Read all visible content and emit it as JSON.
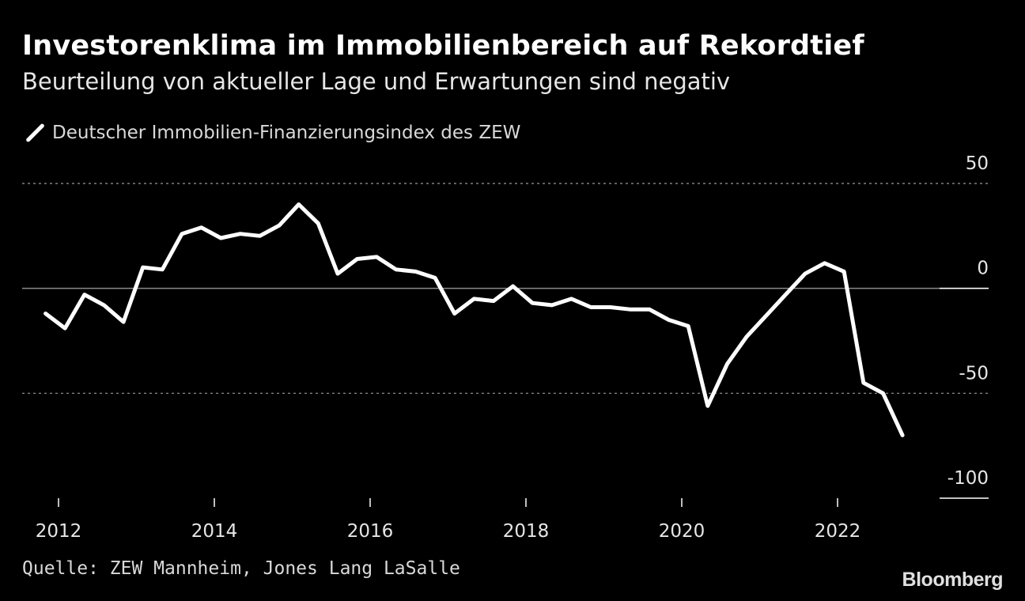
{
  "header": {
    "title": "Investorenklima im Immobilienbereich auf Rekordtief",
    "subtitle": "Beurteilung von aktueller Lage und Erwartungen sind negativ"
  },
  "footer": {
    "source": "Quelle: ZEW Mannheim, Jones Lang LaSalle",
    "brand": "Bloomberg"
  },
  "colors": {
    "background": "#000000",
    "line": "#ffffff",
    "grid": "#8a8a8a",
    "text": "#ffffff"
  },
  "chart_data": {
    "type": "line",
    "title": "Investorenklima im Immobilienbereich auf Rekordtief",
    "subtitle": "Beurteilung von aktueller Lage und Erwartungen sind negativ",
    "ylim": [
      -100,
      50
    ],
    "yticks": [
      50,
      0,
      -50,
      -100
    ],
    "xlim": [
      "2012-01-01",
      "2023-12-31"
    ],
    "xticks": [
      "2012",
      "2014",
      "2016",
      "2018",
      "2020",
      "2022"
    ],
    "zero_line": true,
    "grid": "dotted horizontal at 50 and -50",
    "legend": {
      "position": "top-left",
      "entries": [
        "Deutscher Immobilien-Finanzierungsindex des ZEW"
      ]
    },
    "series": [
      {
        "name": "Deutscher Immobilien-Finanzierungsindex des ZEW",
        "x": [
          "2011-11",
          "2012-02",
          "2012-05",
          "2012-08",
          "2012-11",
          "2013-02",
          "2013-05",
          "2013-08",
          "2013-11",
          "2014-02",
          "2014-05",
          "2014-08",
          "2014-11",
          "2015-02",
          "2015-05",
          "2015-08",
          "2015-11",
          "2016-02",
          "2016-05",
          "2016-08",
          "2016-11",
          "2017-02",
          "2017-05",
          "2017-08",
          "2017-11",
          "2018-02",
          "2018-05",
          "2018-08",
          "2018-11",
          "2019-02",
          "2019-05",
          "2019-08",
          "2019-11",
          "2020-02",
          "2020-05",
          "2020-08",
          "2020-11",
          "2021-02",
          "2021-05",
          "2021-08",
          "2021-11",
          "2022-02",
          "2022-05",
          "2022-08",
          "2022-11"
        ],
        "values": [
          -12,
          -19,
          -3,
          -8,
          -16,
          10,
          9,
          26,
          29,
          24,
          26,
          25,
          30,
          40,
          31,
          7,
          14,
          15,
          9,
          8,
          5,
          -12,
          -5,
          -6,
          1,
          -7,
          -8,
          -5,
          -9,
          -9,
          -10,
          -10,
          -15,
          -18,
          -56,
          -36,
          -23,
          -13,
          -3,
          7,
          12,
          8,
          -45,
          -50,
          -70
        ]
      }
    ]
  }
}
